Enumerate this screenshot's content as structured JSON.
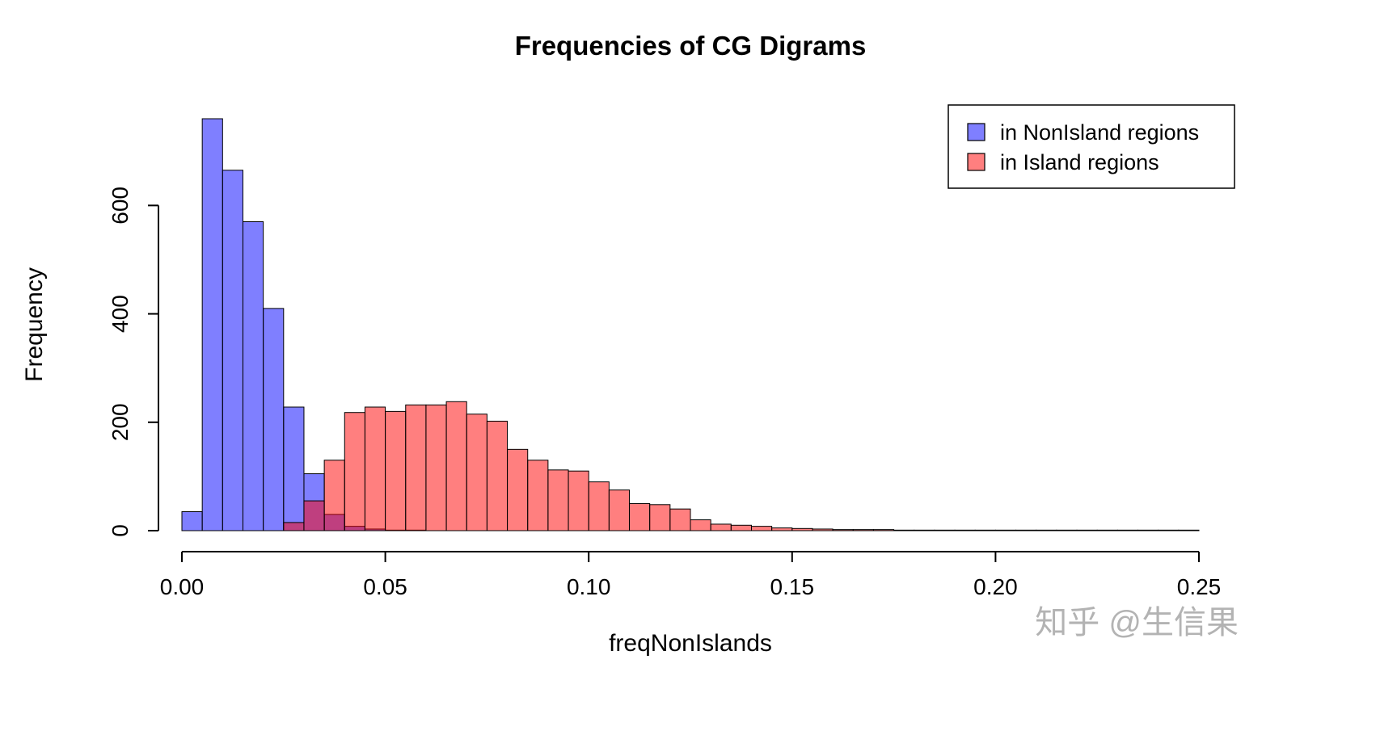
{
  "watermark": "知乎 @生信果",
  "chart_data": {
    "type": "bar",
    "subtype": "overlaid-histogram",
    "title": "Frequencies of CG Digrams",
    "xlabel": "freqNonIslands",
    "ylabel": "Frequency",
    "xlim": [
      0,
      0.25
    ],
    "ylim": [
      0,
      760
    ],
    "bin_width": 0.005,
    "grid": false,
    "legend_position": "top-right",
    "x_tick_values": [
      0,
      0.05,
      0.1,
      0.15,
      0.2,
      0.25
    ],
    "x_tick_labels": [
      "0.00",
      "0.05",
      "0.10",
      "0.15",
      "0.20",
      "0.25"
    ],
    "y_tick_values": [
      0,
      200,
      400,
      600
    ],
    "y_tick_labels": [
      "0",
      "200",
      "400",
      "600"
    ],
    "series": [
      {
        "name": "in NonIsland regions",
        "color": "#0000FF",
        "alpha": 0.5,
        "bin_start": 0,
        "counts": [
          35,
          760,
          665,
          570,
          410,
          228,
          105,
          30,
          8,
          3,
          1,
          1
        ]
      },
      {
        "name": "in Island regions",
        "color": "#FF0000",
        "alpha": 0.5,
        "bin_start": 0.025,
        "counts": [
          15,
          55,
          130,
          218,
          228,
          220,
          232,
          232,
          238,
          215,
          202,
          150,
          130,
          112,
          110,
          90,
          75,
          50,
          48,
          40,
          20,
          12,
          10,
          8,
          5,
          4,
          3,
          2,
          2,
          2,
          1,
          1,
          1,
          1,
          1,
          1,
          1,
          1,
          1,
          1,
          1,
          1,
          1,
          1,
          1
        ]
      }
    ]
  }
}
